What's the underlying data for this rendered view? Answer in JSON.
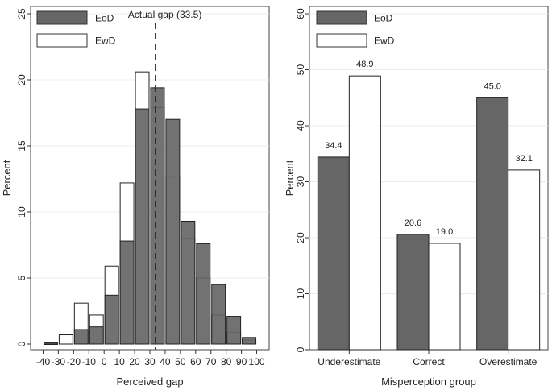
{
  "chart_data": [
    {
      "type": "bar",
      "title": "",
      "xlabel": "Perceived gap",
      "ylabel": "Percent",
      "xlim": [
        -45,
        105
      ],
      "ylim": [
        0,
        25
      ],
      "x_ticks": [
        -40,
        -30,
        -20,
        -10,
        0,
        10,
        20,
        30,
        40,
        50,
        60,
        70,
        80,
        90,
        100
      ],
      "x_tick_labels": [
        "-40",
        "-30",
        "-20",
        "-10",
        "0",
        "10",
        "20",
        "30",
        "40",
        "50",
        "60",
        "70",
        "80",
        "90",
        "100"
      ],
      "y_ticks": [
        0,
        5,
        10,
        15,
        20,
        25
      ],
      "y_tick_labels": [
        "0",
        "5",
        "10",
        "15",
        "20",
        "25"
      ],
      "bin_width": 10,
      "series": [
        {
          "name": "EoD",
          "color": "#666666",
          "bins": [
            -35,
            -15,
            -5,
            5,
            15,
            25,
            35,
            45,
            55,
            65,
            75,
            85,
            95
          ],
          "values": [
            0.1,
            1.1,
            1.3,
            3.7,
            7.8,
            17.8,
            19.4,
            17.0,
            9.3,
            7.6,
            4.5,
            2.1,
            0.5
          ]
        },
        {
          "name": "EwD",
          "color": "#ffffff",
          "bins": [
            -35,
            -25,
            -15,
            -5,
            5,
            15,
            25,
            35,
            45,
            55,
            65,
            75,
            85,
            95
          ],
          "values": [
            0.0,
            0.7,
            3.1,
            2.2,
            5.9,
            12.2,
            20.6,
            17.9,
            12.7,
            8.0,
            5.0,
            2.2,
            0.9,
            0.3
          ]
        }
      ],
      "reference_line": {
        "x": 33.5,
        "label": "Actual gap (33.5)"
      },
      "legend": {
        "position": "top-left",
        "entries": [
          "EoD",
          "EwD"
        ]
      }
    },
    {
      "type": "bar",
      "title": "",
      "xlabel": "Misperception group",
      "ylabel": "Percent",
      "ylim": [
        0,
        60
      ],
      "y_ticks": [
        0,
        10,
        20,
        30,
        40,
        50,
        60
      ],
      "y_tick_labels": [
        "0",
        "10",
        "20",
        "30",
        "40",
        "50",
        "60"
      ],
      "categories": [
        "Underestimate",
        "Correct",
        "Overestimate"
      ],
      "series": [
        {
          "name": "EoD",
          "color": "#666666",
          "values": [
            34.4,
            20.6,
            45.0
          ],
          "labels": [
            "34.4",
            "20.6",
            "45.0"
          ]
        },
        {
          "name": "EwD",
          "color": "#ffffff",
          "values": [
            48.9,
            19.0,
            32.1
          ],
          "labels": [
            "48.9",
            "19.0",
            "32.1"
          ]
        }
      ],
      "legend": {
        "position": "top-left",
        "entries": [
          "EoD",
          "EwD"
        ]
      }
    }
  ]
}
